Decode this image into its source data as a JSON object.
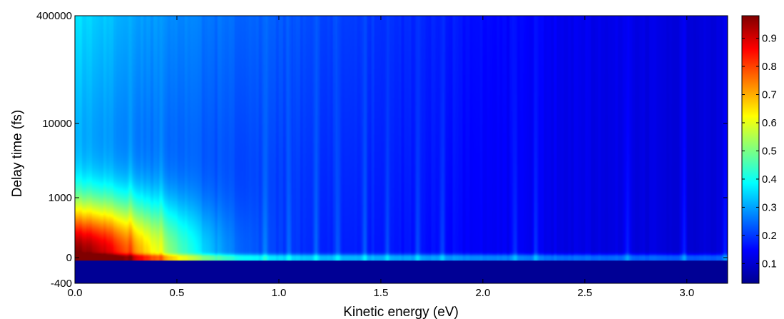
{
  "chart_data": {
    "type": "heatmap",
    "title": "",
    "xlabel": "Kinetic energy (eV)",
    "ylabel": "Delay time (fs)",
    "xlim": [
      0.0,
      3.2
    ],
    "x_ticks": [
      {
        "value": 0.0,
        "label": "0.0"
      },
      {
        "value": 0.5,
        "label": "0.5"
      },
      {
        "value": 1.0,
        "label": "1.0"
      },
      {
        "value": 1.5,
        "label": "1.5"
      },
      {
        "value": 2.0,
        "label": "2.0"
      },
      {
        "value": 2.5,
        "label": "2.5"
      },
      {
        "value": 3.0,
        "label": "3.0"
      }
    ],
    "y_ticks": [
      "-400",
      "0",
      "1000",
      "10000",
      "400000"
    ],
    "y_scale": "piecewise (linear -400 to 0, logarithmic above)",
    "colorbar": {
      "colormap": "jet",
      "range": [
        0.03,
        0.98
      ],
      "ticks": [
        {
          "value": 0.1,
          "label": "0.1"
        },
        {
          "value": 0.2,
          "label": "0.2"
        },
        {
          "value": 0.3,
          "label": "0.3"
        },
        {
          "value": 0.4,
          "label": "0.4"
        },
        {
          "value": 0.5,
          "label": "0.5"
        },
        {
          "value": 0.6,
          "label": "0.6"
        },
        {
          "value": 0.7,
          "label": "0.7"
        },
        {
          "value": 0.8,
          "label": "0.8"
        },
        {
          "value": 0.9,
          "label": "0.9"
        }
      ]
    },
    "grid": false,
    "description_values": {
      "max_intensity_region": {
        "energy_eV": [
          0.0,
          0.45
        ],
        "delay_fs": [
          0,
          500
        ],
        "value": 0.9
      },
      "before_time_zero_value": 0.05,
      "long_delay_low_energy_value": 0.3,
      "high_energy_value": 0.12
    }
  }
}
